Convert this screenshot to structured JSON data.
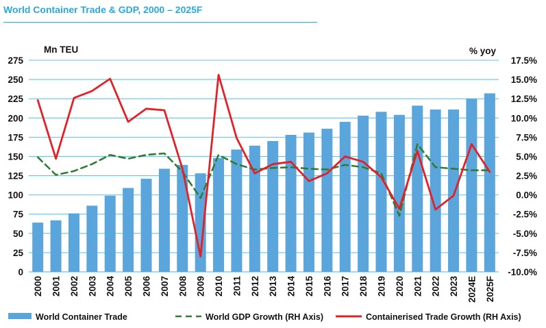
{
  "chart_data": {
    "type": "bar+line",
    "title": "World Container Trade & GDP, 2000 – 2025F",
    "left_unit": "Mn TEU",
    "right_unit": "% yoy",
    "categories": [
      "2000",
      "2001",
      "2002",
      "2003",
      "2004",
      "2005",
      "2006",
      "2007",
      "2008",
      "2009",
      "2010",
      "2011",
      "2012",
      "2013",
      "2014",
      "2015",
      "2016",
      "2017",
      "2018",
      "2019",
      "2020",
      "2021",
      "2022",
      "2023",
      "2024E",
      "2025F"
    ],
    "left_ylim": [
      0,
      275
    ],
    "left_ticks": [
      "0",
      "25",
      "50",
      "75",
      "100",
      "125",
      "150",
      "175",
      "200",
      "225",
      "250",
      "275"
    ],
    "right_ylim": [
      -10,
      17.5
    ],
    "right_ticks": [
      "-10.0%",
      "-7.5%",
      "-5.0%",
      "-2.5%",
      "0.0%",
      "2.5%",
      "5.0%",
      "7.5%",
      "10.0%",
      "12.5%",
      "15.0%",
      "17.5%"
    ],
    "grid": true,
    "legend_position": "bottom",
    "series": [
      {
        "name": "World Container Trade",
        "kind": "bar",
        "axis": "left",
        "color": "#5aa6dc",
        "values": [
          64,
          67,
          76,
          86,
          99,
          109,
          121,
          134,
          139,
          128,
          148,
          159,
          164,
          170,
          178,
          181,
          186,
          195,
          203,
          208,
          204,
          216,
          211,
          211,
          225,
          232
        ]
      },
      {
        "name": "World GDP Growth (RH Axis)",
        "kind": "line",
        "style": "dashed",
        "axis": "right",
        "color": "#2e7d32",
        "values": [
          4.9,
          2.6,
          3.1,
          4.0,
          5.2,
          4.7,
          5.2,
          5.4,
          3.0,
          -0.4,
          5.2,
          4.0,
          3.3,
          3.5,
          3.6,
          3.4,
          3.3,
          3.9,
          3.6,
          2.8,
          -2.7,
          6.6,
          3.6,
          3.4,
          3.2,
          3.2
        ]
      },
      {
        "name": "Containerised Trade Growth (RH Axis)",
        "kind": "line",
        "style": "solid",
        "axis": "right",
        "color": "#e51f25",
        "values": [
          12.3,
          4.7,
          12.6,
          13.5,
          15.1,
          9.5,
          11.2,
          11.0,
          3.4,
          -8.0,
          15.6,
          7.4,
          2.8,
          4.0,
          4.3,
          1.8,
          2.8,
          5.0,
          4.3,
          2.3,
          -1.8,
          5.7,
          -1.9,
          -0.1,
          6.6,
          3.0
        ]
      }
    ]
  }
}
